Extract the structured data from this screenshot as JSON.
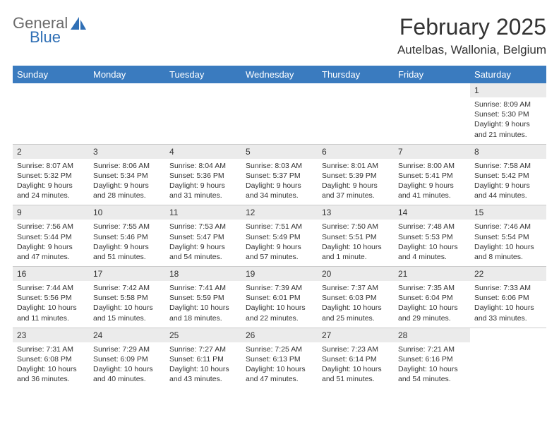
{
  "logo": {
    "word1": "General",
    "word2": "Blue",
    "icon_fill": "#2f6fb5"
  },
  "title": "February 2025",
  "location": "Autelbas, Wallonia, Belgium",
  "colors": {
    "header_bg": "#3a7bbf",
    "header_text": "#ffffff",
    "daynum_bg": "#ebebeb",
    "text": "#333333",
    "border": "#cccccc"
  },
  "weekdays": [
    "Sunday",
    "Monday",
    "Tuesday",
    "Wednesday",
    "Thursday",
    "Friday",
    "Saturday"
  ],
  "weeks": [
    [
      {
        "empty": true
      },
      {
        "empty": true
      },
      {
        "empty": true
      },
      {
        "empty": true
      },
      {
        "empty": true
      },
      {
        "empty": true
      },
      {
        "n": "1",
        "sunrise": "8:09 AM",
        "sunset": "5:30 PM",
        "daylight": "9 hours and 21 minutes."
      }
    ],
    [
      {
        "n": "2",
        "sunrise": "8:07 AM",
        "sunset": "5:32 PM",
        "daylight": "9 hours and 24 minutes."
      },
      {
        "n": "3",
        "sunrise": "8:06 AM",
        "sunset": "5:34 PM",
        "daylight": "9 hours and 28 minutes."
      },
      {
        "n": "4",
        "sunrise": "8:04 AM",
        "sunset": "5:36 PM",
        "daylight": "9 hours and 31 minutes."
      },
      {
        "n": "5",
        "sunrise": "8:03 AM",
        "sunset": "5:37 PM",
        "daylight": "9 hours and 34 minutes."
      },
      {
        "n": "6",
        "sunrise": "8:01 AM",
        "sunset": "5:39 PM",
        "daylight": "9 hours and 37 minutes."
      },
      {
        "n": "7",
        "sunrise": "8:00 AM",
        "sunset": "5:41 PM",
        "daylight": "9 hours and 41 minutes."
      },
      {
        "n": "8",
        "sunrise": "7:58 AM",
        "sunset": "5:42 PM",
        "daylight": "9 hours and 44 minutes."
      }
    ],
    [
      {
        "n": "9",
        "sunrise": "7:56 AM",
        "sunset": "5:44 PM",
        "daylight": "9 hours and 47 minutes."
      },
      {
        "n": "10",
        "sunrise": "7:55 AM",
        "sunset": "5:46 PM",
        "daylight": "9 hours and 51 minutes."
      },
      {
        "n": "11",
        "sunrise": "7:53 AM",
        "sunset": "5:47 PM",
        "daylight": "9 hours and 54 minutes."
      },
      {
        "n": "12",
        "sunrise": "7:51 AM",
        "sunset": "5:49 PM",
        "daylight": "9 hours and 57 minutes."
      },
      {
        "n": "13",
        "sunrise": "7:50 AM",
        "sunset": "5:51 PM",
        "daylight": "10 hours and 1 minute."
      },
      {
        "n": "14",
        "sunrise": "7:48 AM",
        "sunset": "5:53 PM",
        "daylight": "10 hours and 4 minutes."
      },
      {
        "n": "15",
        "sunrise": "7:46 AM",
        "sunset": "5:54 PM",
        "daylight": "10 hours and 8 minutes."
      }
    ],
    [
      {
        "n": "16",
        "sunrise": "7:44 AM",
        "sunset": "5:56 PM",
        "daylight": "10 hours and 11 minutes."
      },
      {
        "n": "17",
        "sunrise": "7:42 AM",
        "sunset": "5:58 PM",
        "daylight": "10 hours and 15 minutes."
      },
      {
        "n": "18",
        "sunrise": "7:41 AM",
        "sunset": "5:59 PM",
        "daylight": "10 hours and 18 minutes."
      },
      {
        "n": "19",
        "sunrise": "7:39 AM",
        "sunset": "6:01 PM",
        "daylight": "10 hours and 22 minutes."
      },
      {
        "n": "20",
        "sunrise": "7:37 AM",
        "sunset": "6:03 PM",
        "daylight": "10 hours and 25 minutes."
      },
      {
        "n": "21",
        "sunrise": "7:35 AM",
        "sunset": "6:04 PM",
        "daylight": "10 hours and 29 minutes."
      },
      {
        "n": "22",
        "sunrise": "7:33 AM",
        "sunset": "6:06 PM",
        "daylight": "10 hours and 33 minutes."
      }
    ],
    [
      {
        "n": "23",
        "sunrise": "7:31 AM",
        "sunset": "6:08 PM",
        "daylight": "10 hours and 36 minutes."
      },
      {
        "n": "24",
        "sunrise": "7:29 AM",
        "sunset": "6:09 PM",
        "daylight": "10 hours and 40 minutes."
      },
      {
        "n": "25",
        "sunrise": "7:27 AM",
        "sunset": "6:11 PM",
        "daylight": "10 hours and 43 minutes."
      },
      {
        "n": "26",
        "sunrise": "7:25 AM",
        "sunset": "6:13 PM",
        "daylight": "10 hours and 47 minutes."
      },
      {
        "n": "27",
        "sunrise": "7:23 AM",
        "sunset": "6:14 PM",
        "daylight": "10 hours and 51 minutes."
      },
      {
        "n": "28",
        "sunrise": "7:21 AM",
        "sunset": "6:16 PM",
        "daylight": "10 hours and 54 minutes."
      },
      {
        "empty": true
      }
    ]
  ]
}
